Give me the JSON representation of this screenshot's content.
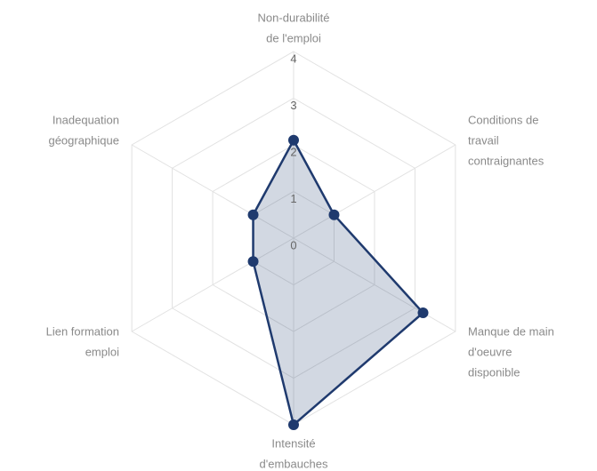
{
  "chart_data": {
    "type": "radar",
    "categories": [
      [
        "Non-durabilité",
        "de l'emploi"
      ],
      [
        "Conditions de",
        "travail",
        "contraignantes"
      ],
      [
        "Manque de main",
        "d'oeuvre",
        "disponible"
      ],
      [
        "Intensité",
        "d'embauches"
      ],
      [
        "Lien formation",
        "emploi"
      ],
      [
        "Inadequation",
        "géographique"
      ]
    ],
    "series": [
      {
        "color": "#1f3a6e",
        "values": [
          2.1,
          1,
          3.2,
          4,
          1,
          1
        ]
      }
    ],
    "rlim": [
      0,
      4
    ],
    "rticks": [
      0,
      1,
      2,
      3,
      4
    ],
    "grid": true
  }
}
